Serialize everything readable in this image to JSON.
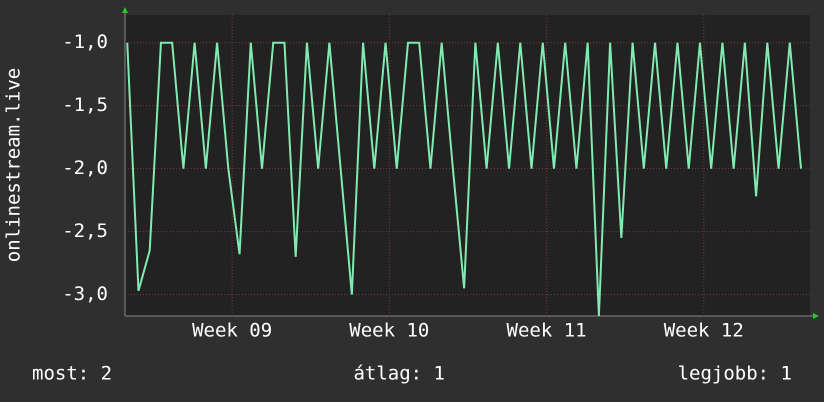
{
  "chart_data": {
    "type": "line",
    "y_label": "onlinestream.live",
    "x": [
      0,
      0.5,
      1,
      1.5,
      2,
      2.5,
      3,
      3.5,
      4,
      4.5,
      5,
      5.5,
      6,
      6.5,
      7,
      7.5,
      8,
      8.5,
      9,
      9.5,
      10,
      10.5,
      11,
      11.5,
      12,
      12.5,
      13,
      13.5,
      14,
      14.5,
      15,
      15.5,
      16,
      16.5,
      17,
      17.5,
      18,
      18.5,
      19,
      19.5,
      20,
      20.5,
      21,
      21.5,
      22,
      22.5,
      23,
      23.5,
      24,
      24.5,
      25,
      25.5,
      26,
      26.5,
      27,
      27.5,
      28,
      28.5,
      29,
      29.5,
      30
    ],
    "series": [
      {
        "color": "#80eab0",
        "values": [
          -1.0,
          -2.97,
          -2.65,
          -1.0,
          -1.0,
          -2.0,
          -1.0,
          -2.0,
          -1.0,
          -2.0,
          -2.68,
          -1.0,
          -2.0,
          -1.0,
          -1.0,
          -2.7,
          -1.0,
          -2.0,
          -1.0,
          -2.0,
          -3.0,
          -1.0,
          -2.0,
          -1.0,
          -2.0,
          -1.0,
          -1.0,
          -2.0,
          -1.0,
          -2.0,
          -2.95,
          -1.0,
          -2.0,
          -1.0,
          -2.0,
          -1.0,
          -2.0,
          -1.0,
          -2.0,
          -1.0,
          -2.0,
          -1.0,
          -3.17,
          -1.0,
          -2.55,
          -1.0,
          -2.0,
          -1.0,
          -2.0,
          -1.0,
          -2.0,
          -1.0,
          -2.0,
          -1.0,
          -2.0,
          -1.0,
          -2.22,
          -1.0,
          -2.0,
          -1.0,
          -2.0
        ]
      }
    ],
    "xlim": [
      -0.1,
      30.4
    ],
    "xticks": [
      {
        "value": 4.67,
        "label": "Week 09"
      },
      {
        "value": 11.67,
        "label": "Week 10"
      },
      {
        "value": 18.67,
        "label": "Week 11"
      },
      {
        "value": 25.67,
        "label": "Week 12"
      }
    ],
    "ylim": [
      -3.17,
      -0.78
    ],
    "yticks": [
      {
        "value": -1,
        "label": "-1,0"
      },
      {
        "value": -1.5,
        "label": "-1,5"
      },
      {
        "value": -2,
        "label": "-2,0"
      },
      {
        "value": -2.5,
        "label": "-2,5"
      },
      {
        "value": -3,
        "label": "-3,0"
      }
    ],
    "grid": true,
    "footer": [
      "most: 2",
      "átlag: 1",
      "legjobb: 1"
    ]
  }
}
